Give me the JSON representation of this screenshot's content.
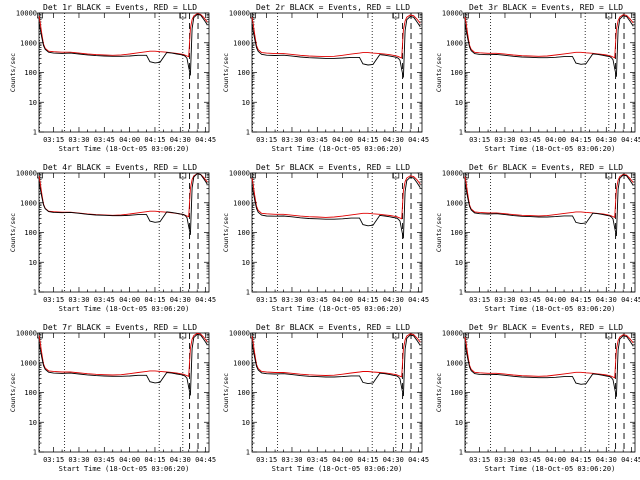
{
  "colors": {
    "events": "#000000",
    "lld": "#e00000"
  },
  "panels": [
    {
      "title": "Det 1r BLACK = Events, RED = LLD",
      "xlabel": "Start Time (18-Oct-05 03:06:20)",
      "ylabel": "Counts/sec"
    },
    {
      "title": "Det 2r BLACK = Events, RED = LLD",
      "xlabel": "Start Time (18-Oct-05 03:06:20)",
      "ylabel": "Counts/sec"
    },
    {
      "title": "Det 3r BLACK = Events, RED = LLD",
      "xlabel": "Start Time (18-Oct-05 03:06:20)",
      "ylabel": "Counts/sec"
    },
    {
      "title": "Det 4r BLACK = Events, RED = LLD",
      "xlabel": "Start Time (18-Oct-05 03:06:20)",
      "ylabel": "Counts/sec"
    },
    {
      "title": "Det 5r BLACK = Events, RED = LLD",
      "xlabel": "Start Time (18-Oct-05 03:06:20)",
      "ylabel": "Counts/sec"
    },
    {
      "title": "Det 6r BLACK = Events, RED = LLD",
      "xlabel": "Start Time (18-Oct-05 03:06:20)",
      "ylabel": "Counts/sec"
    },
    {
      "title": "Det 7r BLACK = Events, RED = LLD",
      "xlabel": "Start Time (18-Oct-05 03:06:20)",
      "ylabel": "Counts/sec"
    },
    {
      "title": "Det 8r BLACK = Events, RED = LLD",
      "xlabel": "Start Time (18-Oct-05 03:06:20)",
      "ylabel": "Counts/sec"
    },
    {
      "title": "Det 9r BLACK = Events, RED = LLD",
      "xlabel": "Start Time (18-Oct-05 03:06:20)",
      "ylabel": "Counts/sec"
    }
  ],
  "chart_data": {
    "type": "line",
    "layout": "3x3 small multiples",
    "y_scale": "log",
    "ylim": [
      1,
      10000
    ],
    "y_ticks": [
      "1",
      "10",
      "100",
      "1000",
      "10000"
    ],
    "x_ticks": [
      "03:15",
      "03:30",
      "03:45",
      "04:00",
      "04:15",
      "04:30",
      "04:45"
    ],
    "x_tick_minutes": [
      15,
      30,
      45,
      60,
      75,
      90,
      105
    ],
    "xlim_minutes": [
      6.33,
      107
    ],
    "vertical_markers": {
      "dotted_minutes": [
        6.6,
        21.5,
        77.5,
        91.5
      ],
      "dashed_minutes": [
        95.5,
        100.5
      ]
    },
    "series_template": {
      "x_minutes": [
        6.33,
        7,
        8,
        9,
        10,
        12,
        15,
        20,
        25,
        30,
        35,
        40,
        45,
        50,
        55,
        60,
        65,
        70,
        72,
        75,
        78,
        82,
        85,
        88,
        90,
        92,
        93,
        94,
        95,
        96,
        97,
        98,
        100,
        102,
        104,
        106
      ],
      "events": [
        5000,
        3000,
        1500,
        800,
        600,
        480,
        450,
        440,
        450,
        420,
        390,
        370,
        360,
        350,
        350,
        360,
        380,
        380,
        230,
        210,
        220,
        470,
        450,
        420,
        400,
        380,
        350,
        300,
        150,
        80,
        3000,
        7000,
        9000,
        8500,
        6000,
        4000
      ],
      "lld": [
        8000,
        5000,
        2000,
        900,
        650,
        520,
        500,
        480,
        480,
        450,
        420,
        400,
        390,
        380,
        390,
        420,
        460,
        500,
        520,
        520,
        500,
        480,
        460,
        440,
        420,
        400,
        380,
        360,
        340,
        3000,
        6000,
        8000,
        9500,
        9000,
        7000,
        5000
      ]
    },
    "series": [
      {
        "det": "1r",
        "events_scale": 1.0,
        "lld_scale": 1.0
      },
      {
        "det": "2r",
        "events_scale": 0.85,
        "lld_scale": 0.9
      },
      {
        "det": "3r",
        "events_scale": 0.9,
        "lld_scale": 0.92
      },
      {
        "det": "4r",
        "events_scale": 1.05,
        "lld_scale": 1.0
      },
      {
        "det": "5r",
        "events_scale": 0.8,
        "lld_scale": 0.85
      },
      {
        "det": "6r",
        "events_scale": 0.95,
        "lld_scale": 0.95
      },
      {
        "det": "7r",
        "events_scale": 1.0,
        "lld_scale": 1.02
      },
      {
        "det": "8r",
        "events_scale": 0.95,
        "lld_scale": 0.98
      },
      {
        "det": "9r",
        "events_scale": 0.9,
        "lld_scale": 0.92
      }
    ]
  }
}
